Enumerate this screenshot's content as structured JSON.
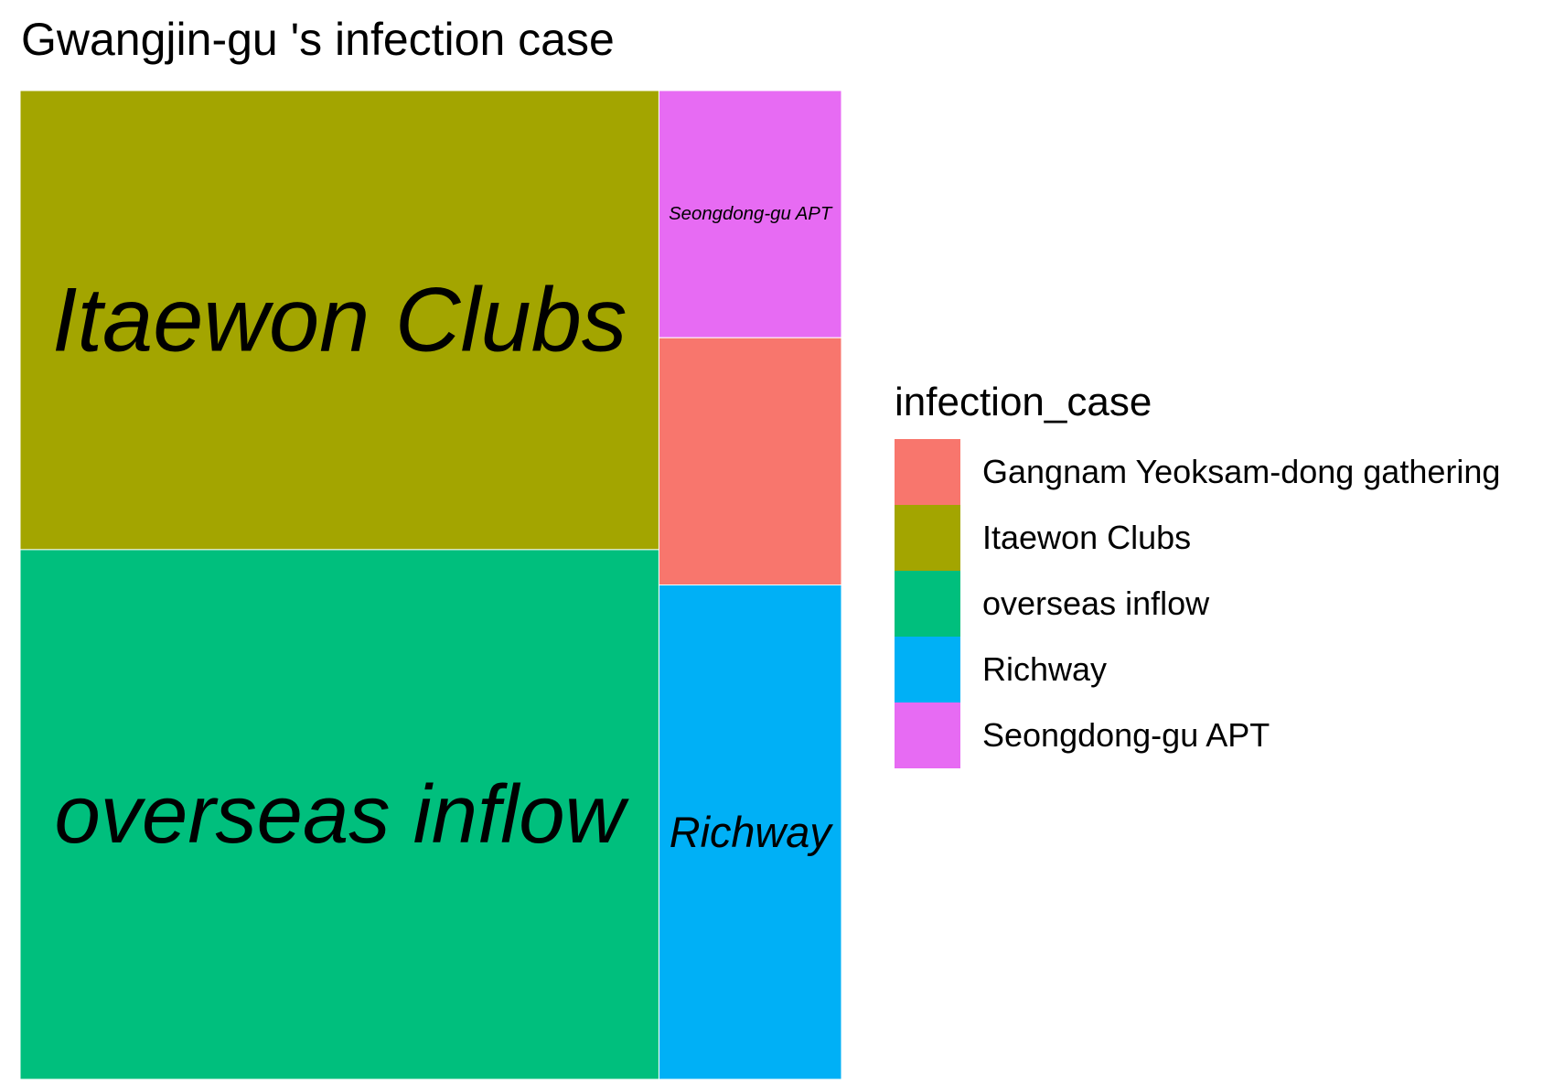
{
  "chart_data": {
    "type": "treemap",
    "title": "Gwangjin-gu 's infection case",
    "legend": {
      "title": "infection_case",
      "position": "right",
      "entries": [
        {
          "label": "Gangnam Yeoksam-dong gathering",
          "color": "#F8766D"
        },
        {
          "label": "Itaewon Clubs",
          "color": "#A3A500"
        },
        {
          "label": "overseas inflow",
          "color": "#00BF7D"
        },
        {
          "label": "Richway",
          "color": "#00B0F6"
        },
        {
          "label": "Seongdong-gu APT",
          "color": "#E76BF3"
        }
      ]
    },
    "tiles": [
      {
        "name": "Itaewon Clubs",
        "value": 13,
        "color": "#A3A500",
        "label": "Itaewon Clubs"
      },
      {
        "name": "overseas inflow",
        "value": 15,
        "color": "#00BF7D",
        "label": "overseas inflow"
      },
      {
        "name": "Richway",
        "value": 4,
        "color": "#00B0F6",
        "label": "Richway"
      },
      {
        "name": "Seongdong-gu APT",
        "value": 2,
        "color": "#E76BF3",
        "label": "Seongdong-gu APT"
      },
      {
        "name": "Gangnam Yeoksam-dong gathering",
        "value": 2,
        "color": "#F8766D",
        "label": ""
      }
    ]
  }
}
